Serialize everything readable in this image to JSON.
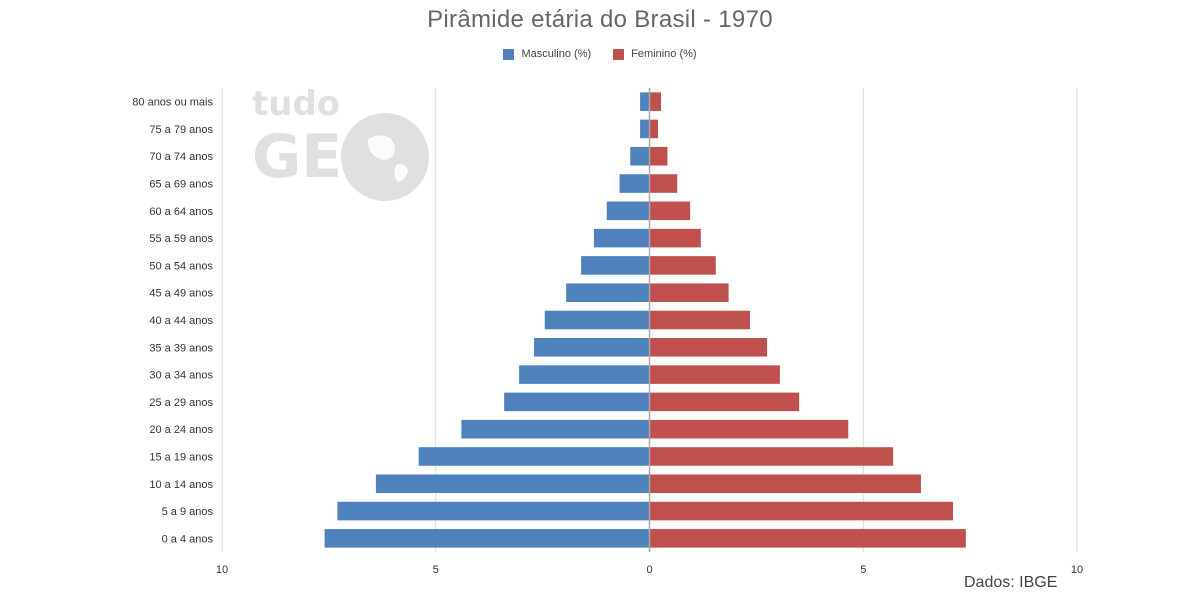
{
  "title": "Pirâmide etária do Brasil - 1970",
  "legend": {
    "male": "Masculino (%)",
    "female": "Feminino (%)"
  },
  "source": "Dados: IBGE",
  "watermark": {
    "line1": "tudo",
    "line2": "GE",
    "color": "#e0e0e0",
    "icon": "globe-icon"
  },
  "colors": {
    "male": "#4f81bd",
    "female": "#c0504d",
    "grid": "#d9d9d9",
    "axis": "#aaaaaa"
  },
  "chart_data": {
    "type": "bar",
    "orientation": "horizontal",
    "title": "Pirâmide etária do Brasil - 1970",
    "categories": [
      "0 a 4 anos",
      "5 a 9 anos",
      "10 a 14 anos",
      "15 a 19 anos",
      "20 a 24 anos",
      "25 a 29 anos",
      "30 a 34 anos",
      "35 a 39 anos",
      "40 a 44 anos",
      "45 a 49 anos",
      "50 a 54 anos",
      "55 a 59 anos",
      "60 a 64 anos",
      "65 a 69 anos",
      "70 a 74 anos",
      "75 a 79 anos",
      "80 anos ou mais"
    ],
    "series": [
      {
        "name": "Masculino (%)",
        "side": "left",
        "values": [
          7.6,
          7.3,
          6.4,
          5.4,
          4.4,
          3.4,
          3.05,
          2.7,
          2.45,
          1.95,
          1.6,
          1.3,
          1.0,
          0.7,
          0.45,
          0.22,
          0.22
        ]
      },
      {
        "name": "Feminino (%)",
        "side": "right",
        "values": [
          7.4,
          7.1,
          6.35,
          5.7,
          4.65,
          3.5,
          3.05,
          2.75,
          2.35,
          1.85,
          1.55,
          1.2,
          0.95,
          0.65,
          0.42,
          0.2,
          0.27
        ]
      }
    ],
    "xticks": [
      10,
      5,
      0,
      5,
      10
    ],
    "xlim": [
      -10,
      10
    ],
    "grid": true,
    "legend_position": "top"
  }
}
